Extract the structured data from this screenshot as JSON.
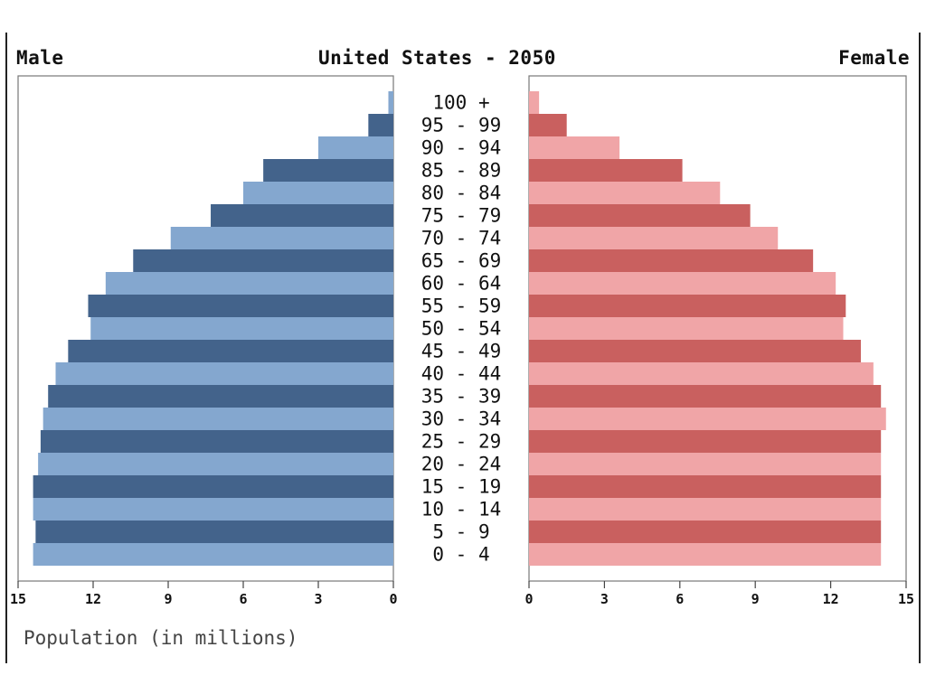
{
  "chart_data": {
    "type": "bar",
    "orientation": "horizontal",
    "title": "United States - 2050",
    "left_header": "Male",
    "right_header": "Female",
    "xlabel": "Population (in millions)",
    "categories": [
      "100 +",
      "95 - 99",
      "90 - 94",
      "85 - 89",
      "80 - 84",
      "75 - 79",
      "70 - 74",
      "65 - 69",
      "60 - 64",
      "55 - 59",
      "50 - 54",
      "45 - 49",
      "40 - 44",
      "35 - 39",
      "30 - 34",
      "25 - 29",
      "20 - 24",
      "15 - 19",
      "10 - 14",
      "5 - 9",
      "0 - 4"
    ],
    "series": [
      {
        "name": "Male",
        "values": [
          0.2,
          1.0,
          3.0,
          5.2,
          6.0,
          7.3,
          8.9,
          10.4,
          11.5,
          12.2,
          12.1,
          13.0,
          13.5,
          13.8,
          14.0,
          14.1,
          14.2,
          14.4,
          14.4,
          14.3,
          14.4
        ]
      },
      {
        "name": "Female",
        "values": [
          0.4,
          1.5,
          3.6,
          6.1,
          7.6,
          8.8,
          9.9,
          11.3,
          12.2,
          12.6,
          12.5,
          13.2,
          13.7,
          14.0,
          14.2,
          14.0,
          14.0,
          14.0,
          14.0,
          14.0,
          14.0
        ]
      }
    ],
    "male_ticks": [
      "15",
      "12",
      "9",
      "6",
      "3",
      "0"
    ],
    "female_ticks": [
      "0",
      "3",
      "6",
      "9",
      "12",
      "15"
    ],
    "xlim": [
      0,
      15
    ],
    "colors": {
      "male_dark": "#43638b",
      "male_light": "#84a7cf",
      "female_dark": "#c9605f",
      "female_light": "#f0a5a7"
    }
  }
}
